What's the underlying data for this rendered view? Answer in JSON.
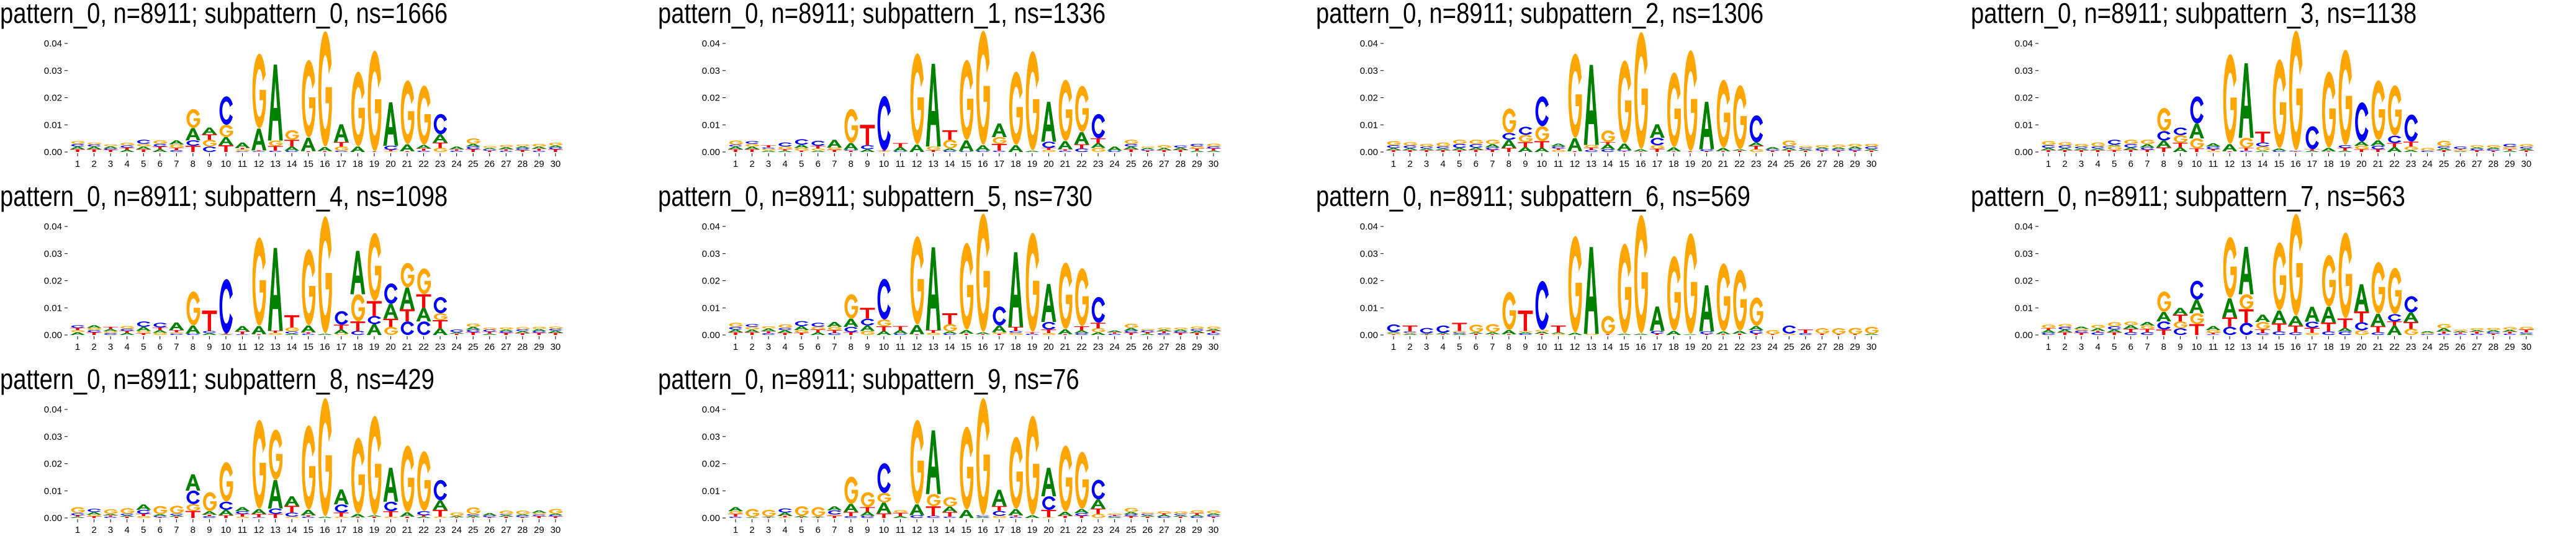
{
  "logo_axes": {
    "yticks": [
      "0.00",
      "0.01",
      "0.02",
      "0.03",
      "0.04"
    ],
    "ytick_values": [
      0,
      0.01,
      0.02,
      0.03,
      0.04
    ],
    "xticks": [
      "1",
      "2",
      "3",
      "4",
      "5",
      "6",
      "7",
      "8",
      "9",
      "10",
      "11",
      "12",
      "13",
      "14",
      "15",
      "16",
      "17",
      "18",
      "19",
      "20",
      "21",
      "22",
      "23",
      "24",
      "25",
      "26",
      "27",
      "28",
      "29",
      "30"
    ],
    "ylim": [
      0,
      0.045
    ]
  },
  "colors": {
    "A": "#008000",
    "C": "#0000ff",
    "G": "#ffa500",
    "T": "#ff0000"
  },
  "chart_data": [
    {
      "type": "sequence_logo",
      "title": "pattern_0, n=8911; subpattern_0, ns=1666",
      "value_unit": "0.001, letters listed bottom to top",
      "columns": [
        "T1 A1 C1 G1",
        "T1 A1 C0.8 G0.7",
        "T0.8 C0.5 A0.8 G0.7",
        "A0.8 T0.8 C0.8 G1",
        "T1 A1 G1 C1.5",
        "A1 T1 C1 G1.3",
        "C0.7 T0.8 G1.3 A1.5",
        "T2.3 C2 A4.5 G7",
        "C2 G2.5 T2 A2.5",
        "T2.5 A3 G4.5 C10.5",
        "C0.3 G0.7 T0.5 A2",
        "C0.3 T0.3 A8 G27.5",
        "C0.5 T1.7 G2 A28",
        "C0.5 A1.5 T2.5 G3.5",
        "T0.3 A5 G28.5",
        "T0.3 A1.5 G42.5",
        "C0.5 G1.5 T1.7 A6.5",
        "A2 G27.5",
        "T0.2 G37",
        "G0.3 T0.5 C1.5 A16",
        "T0.3 A2.5 G23.5",
        "C0.5 T0.8 A1.3 G21.8",
        "G1.5 T2 A3 C7.5",
        "C0.5 T0.5 A1",
        "T1 C1 A1 G2",
        "T0.5 C0.5 A0.5 G0.7",
        "C0.5 T0.5 A0.8 G0.8",
        "T0.7 C0.7 A0.7 G0.7",
        "C0.5 T0.7 A0.8 G1",
        "T1 C0.7 A0.7 G1"
      ]
    },
    {
      "type": "sequence_logo",
      "title": "pattern_0, n=8911; subpattern_1, ns=1336",
      "value_unit": "0.001, letters listed bottom to top",
      "columns": [
        "T1 A1 C0.7 G1.5",
        "T1 A1 G1 C1",
        "A0.5 G0.7 C0.5 T0.8",
        "A0.5 T0.5 G1 C1.5",
        "T0.5 G1 A1.2 C2",
        "A0.5 G0.8 T1 C1.8",
        "T0.8 G0.8 A2.9",
        "T0.5 C0.3 A2.5 G12.5",
        "A1 C1.5 T7.5",
        "G0.3 T0.3 C20",
        "C0.3 A1.5 T1.5",
        "A2.7 G33.5",
        "T0.7 G1.3 A30.5",
        "C0.5 A0.8 G3.2 T3.5",
        "C0.3 A4 G29.5",
        "C0.5 A2 G42",
        "C0.5 T2.5 G2.5 A5",
        "A2.5 G27",
        "A0.5 G36.5",
        "G0.8 T0.7 C2.3 A14.7",
        "C0.5 T0.5 A3 G22.5",
        "C1.3 T1.5 A4.5 G17",
        "G1.5 A1.8 T1.7 C9",
        "C0.5 A1.5",
        "T1 A1 C1 G1.5",
        "T0.5 C0.5 A0.5 G0.5",
        "T0.7 A0.8 G1",
        "T0.8 A0.8 C0.8",
        "A0.5 T0.8 G0.8 C0.9",
        "A0.5 T0.8 C0.8 G1"
      ]
    },
    {
      "type": "sequence_logo",
      "title": "pattern_0, n=8911; subpattern_2, ns=1306",
      "value_unit": "0.001, letters listed bottom to top",
      "columns": [
        "T0.7 A0.8 C1 G1.5",
        "T0.7 A0.7 C1 G1.2",
        "T0.7 A0.6 C0.7 G1",
        "T0.7 A0.6 C0.8 G1.4",
        "T0.7 A0.8 C1.5 G1.5",
        "T0.8 A0.8 C1.3 G1.6",
        "T0.8 C0.9 A1.2 G1.6",
        "T1.5 A3 C2.5 G9",
        "A1.8 T1.8 G2.7 C3",
        "A1.5 T2.5 G5.5 C11",
        "G0.8 T0.5 C0.8 A1",
        "T0.3 A4.8 G31",
        "C0.8 T0.8 G1 A29.5",
        "C1 A1.8 T0.8 G4.3",
        "T0.3 C0.3 A2.5 G30.5",
        "T0.2 A0.8 G43",
        "T1.2 G1.3 C2.7 A5",
        "T0.2 A1.5 G27.5",
        "T0.3 G37",
        "T0.3 C0.7 A17.5",
        "T0.3 A1.2 G25",
        "T0.5 A0.5 G23.5",
        "G1 T1.3 A1.2 C10",
        "T0.5 C0.5 A0.8",
        "T0.7 A0.7 C0.8 G2",
        "T0.5 A0.5 C0.5 G0.7",
        "T0.5 C0.7 A0.5 G0.8",
        "T0.5 C0.6 A0.6 G1",
        "T0.5 C0.7 A0.8 G1",
        "T0.5 A0.6 C0.9 G1"
      ]
    },
    {
      "type": "sequence_logo",
      "title": "pattern_0, n=8911; subpattern_3, ns=1138",
      "value_unit": "0.001, letters listed bottom to top",
      "columns": [
        "T0.7 A0.8 C1 G1.5",
        "T0.7 A0.7 C1 G1.2",
        "T0.7 A0.6 C0.7 G1",
        "T0.7 A0.6 C0.8 G1.4",
        "T0.7 G1.5 A0.5 C1.8",
        "T0.8 A0.8 C1.3 G1.6",
        "T0.8 C0.9 A1.2 G1.6",
        "T1.7 A2.5 C3.5 G8.5",
        "A1.7 T1.7 G2.8 C2.8",
        "T1.3 G3.7 A5.5 C10",
        "G0.5 T0.5 C1 A1.2",
        "T0.3 A2.6 G33",
        "C0.5 T1 G3.7 A27.5",
        "A0.5 G1.5 C1.5 T4",
        "C0.5 A0.8 G32.7",
        "T0.2 C0.3 G44",
        "A0.5 T0.5 C8.5",
        "T0.2 A1.3 G28",
        "A0.5 T1 C1 G35",
        "T1 G1.3 A1.5 C14.5",
        "T1 C1.3 A2 G22",
        "A1.8 T1.5 C2.7 G18.5",
        "A0.7 G1.3 T1.8 C10",
        "C0.5 G1",
        "T0.7 A0.7 C0.7 G2",
        "A0.3 G0.5 T0.3 C0.9",
        "T0.6 C0.6 A0.5 G0.8",
        "T0.5 C0.6 A0.5 G0.9",
        "A0.5 T0.6 G0.8 C1.1",
        "T0.6 A0.6 C0.7 G1"
      ]
    },
    {
      "type": "sequence_logo",
      "title": "pattern_0, n=8911; subpattern_4, ns=1098",
      "value_unit": "0.001, letters listed bottom to top",
      "columns": [
        "A1 G0.8 T0.8 C1",
        "T1 C0.8 G0.8 A1",
        "C0.7 G0.7 A0.8 T0.8",
        "A0.8 T0.7 C0.8 G1",
        "T0.7 G0.8 A1.5 C2",
        "G0.8 A1 T1 C1.7",
        "C0.5 G0.5 T0.8 A2.8",
        "C0.5 A3 G12.5",
        "A0.7 C0.8 T7.5",
        "A0.3 T0.3 C20",
        "C0.3 T1 A2",
        "T0.3 A3 G32.5",
        "G0.8 T0.8 A30.5",
        "A0.5 C0.8 G1.5 T4.5",
        "C0.5 T0.5 A2.5 G28",
        "A0.5 G43",
        "G0.5 A1.5 T1.8 C5",
        "C1.5 T3.5 G10 A16",
        "A4 C3 T5.5 G25",
        "G3 T3 A5.5 C7.5",
        "C5 T4.5 A8 G9",
        "C5 A5 T5 G9.5",
        "A2.5 T3 G2.5 C6",
        "T0.5 A0.5 C1",
        "T1 C1 A1 G1.2",
        "A0.5 T0.7 C0.8 G0.7",
        "T0.8 C0.6 A0.6 G0.8",
        "T0.7 A0.7 C0.7 G0.8",
        "T0.8 C0.7 A0.7 G0.8",
        "T0.8 A0.8 C0.7 G0.8"
      ]
    },
    {
      "type": "sequence_logo",
      "title": "pattern_0, n=8911; subpattern_5, ns=730",
      "value_unit": "0.001, letters listed bottom to top",
      "columns": [
        "T1 A1 C1 G1.5",
        "T1 A1 G1 C1",
        "C0.7 T0.7 A1 G0.8",
        "T0.8 A1 C0.8 G1.3",
        "T0.8 G1 A1.5 C1.8",
        "A1 T1 G1 C1.5",
        "C0.8 T1 G1.2 A1.8",
        "T1 C2 A3 G9",
        "G1.5 A2 C2.5 T4",
        "A1.5 T1.7 G2.5 C15",
        "C0.5 A1.3 T1.5",
        "T0.3 A3.4 G32.5",
        "G0.8 T1 A30.5",
        "C0.5 A0.8 G2.7 T4",
        "T0.5 A1.3 G32",
        "T0.3 A0.7 G43.5",
        "T0.5 G0.5 A2.5 C7",
        "G0.8 C0.7 T1.5 A27.5",
        "C0.5 T0.5 G36.5",
        "G0.7 T1.3 C2.8 A14",
        "T0.3 A1.8 G24.5",
        "C0.7 A1 T1.5 G21.3",
        "A1 G1.5 T2 C9.5",
        "C0.5 T0.5 A0.7",
        "T0.8 C0.8 A1 G1.5",
        "A0.5 T0.5 C0.7 G0.5",
        "C0.7 T0.7 A0.6 G0.7",
        "T0.8 C0.6 A0.6 G0.7",
        "T0.8 A0.7 C0.7 G0.9",
        "C0.8 T0.8 A0.6 G0.9"
      ]
    },
    {
      "type": "sequence_logo",
      "title": "pattern_0, n=8911; subpattern_6, ns=569",
      "value_unit": "0.001, letters listed bottom to top",
      "columns": [
        "T0.3 G0.4 A0.4 C2.8",
        "A0.5 G0.3 C0.5 T2.2",
        "T0.3 A0.3 C2",
        "T0.3 A0.5 C2.7",
        "A0.5 C0.5 G0.5 T3",
        "T0.5 A0.5 G2.8",
        "T0.3 A0.7 G3",
        "T0.3 A1.5 G14",
        "C0.5 A0.5 G0.5 T7.5",
        "T0.5 A0.7 G0.7 C18",
        "G0.5 A0.5 T2.5",
        "A0.8 G35.5",
        "G0.4 A32",
        "T0.3 G6.7",
        "A0.5 G33",
        "A0.5 G43.5",
        "T0.5 C1 A9",
        "A1.5 G27.5",
        "A0.3 G37",
        "T0.3 C1 A17",
        "T0.3 A1 G25",
        "T0.5 A1 G22.5",
        "T0.5 C1.3 A1.5 G10.5",
        "T0.3 G1.5",
        "G0.5 C3",
        "C0.7 T1.3",
        "T0.5 G2",
        "T0.3 G2.2",
        "T0.3 G2.3",
        "A0.5 G2.5"
      ]
    },
    {
      "type": "sequence_logo",
      "title": "pattern_0, n=8911; subpattern_7, ns=563",
      "value_unit": "0.001, letters listed bottom to top",
      "columns": [
        "C0.8 A1 T0.7 G1.3",
        "T1 A1 C1 G1",
        "T0.8 C0.8 G0.7 A0.8",
        "C1 T0.5 A1 G1.2",
        "T1 A1 C1.2 G1.5",
        "C1 T1.3 A1.3 G1.3",
        "C1 T1.2 G1.3 A1.3",
        "T2 C3 A3.5 G7.5",
        "C2.5 G2.5 T2.5 A2.5",
        "T4 G4 A5 C7",
        "C0.3 T0.5 G1 A1.5",
        "C3 T3.5 A7 G22.5",
        "C4.5 T5 G5.5 A17.5",
        "C0.8 T1.3 G2.7 A2.7",
        "C1.3 T3 A4.7 G25",
        "C1 T2.5 A3.5 G37.5",
        "G0.8 T1.8 C2.3 A5.5",
        "C1.3 T3.3 A5.8 G19",
        "C1.3 A1.3 T3.5 G31.5",
        "G1.7 C3 T4 A10",
        "C1 T2.3 A4.5 G19",
        "A3.5 T1.5 C2.7 G17",
        "G2.3 T2.5 A3.5 C6",
        "C0.4 G0.4 A0.6",
        "C0.5 T0.8 A1.2 G1.5",
        "C0.5 T0.5 A0.5 G0.5",
        "C0.5 T0.7 A0.6 G0.7",
        "T0.5 C0.6 A0.7 G0.8",
        "C0.5 T0.7 A0.7 G1",
        "A0.5 C0.5 T1 G1"
      ]
    },
    {
      "type": "sequence_logo",
      "title": "pattern_0, n=8911; subpattern_8, ns=429",
      "value_unit": "0.001, letters listed bottom to top",
      "columns": [
        "A0.5 T0.5 C0.8 G2.2",
        "T0.7 G0.5 A1 C1.2",
        "C0.5 T0.5 A0.5 G1.7",
        "T0.5 A0.5 C0.6 G2",
        "G0.7 T0.8 C1.5 A2",
        "T0.3 C0.5 A0.6 G3",
        "T0.5 A0.5 C0.6 G2.9",
        "T2.6 G2.5 C5 A6",
        "C0.7 T0.5 A1.3 G7",
        "T1 A2 C3 G14.5",
        "G0.5 T1 C1 A1.5",
        "C0.3 T1.2 A1.8 G32.7",
        "T1.5 C2 A10.5 G18.5",
        "G0.5 C1.5 T2.5 A3.5",
        "C0.5 T0.5 A2 G31",
        "A0.5 G43.5",
        "G0.5 T1.5 C3 A5.5",
        "T0.3 A1.2 G28",
        "T0.5 A0.5 G36.5",
        "G0.5 T2 C3.5 A12.5",
        "T0.5 A1.6 G24.5",
        "A0.5 T0.5 C1.5 G22",
        "G0.5 T2.5 A3.5 C7.5",
        "T0.3 A0.5 G1.2",
        "T0.3 A0.6 C0.5 G2.5",
        "T0.3 C0.6 A0.9",
        "T0.5 A0.6 C0.3 G1.3",
        "T0.3 C0.6 A0.5 G1.3",
        "T0.7 C0.6 G0.6 A0.9",
        "T0.6 C0.5 A0.5 G1.7"
      ]
    },
    {
      "type": "sequence_logo",
      "title": "pattern_0, n=8911; subpattern_9, ns=76",
      "value_unit": "0.001, letters listed bottom to top",
      "columns": [
        "C0.5 T1 G1 A1.5",
        "A0.3 G3",
        "T0.3 A0.3 G2.4",
        "G0.3 T0.5 A1.2 C1.5",
        "T0.3 A0.5 G3.5",
        "T0.3 A0.3 G3.4",
        "T0.8 G0.5 C1.5 A1.5",
        "C0.7 T1.5 A3 G10",
        "C0.8 A1.5 T1.7 G5.5",
        "T1.7 A4 G3.5 C11",
        "A0.7 T1.2 G1",
        "C1 A4 G31",
        "C0.8 T3.5 G4.5 A23.5",
        "C0.5 T1.7 A2 G3.5",
        "A3 G30.5",
        "A0.5 C0.5 G43",
        "G0.8 C1.8 T1.8 A6",
        "C0.5 T0.5 A2.3 G26.5",
        "A1 G36.5",
        "G0.3 T2.7 C5 A10.5",
        "T0.8 A1.5 G24.3",
        "T0.8 C1 A1.5 G21",
        "G1.5 T2 A3.3 C7.3",
        "A0.4 C0.4 T0.4 G0.5",
        "T0.7 C0.7 A0.8 G1.5",
        "T0.5 A0.5 C0.5 G0.6",
        "C0.5 A0.7 T0.5 G0.8",
        "T0.5 A0.5 C0.5 G0.9",
        "C0.5 A0.6 T0.7 G1",
        "T0.5 C0.6 A0.6 G1"
      ]
    }
  ]
}
